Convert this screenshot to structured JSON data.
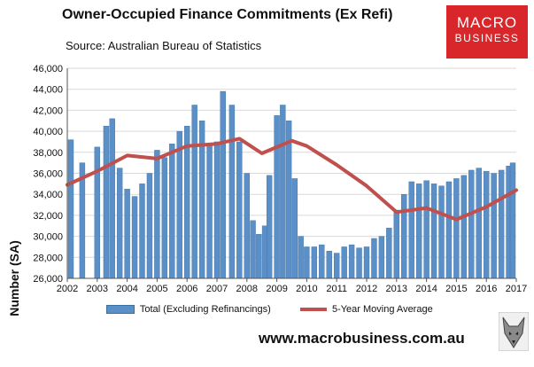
{
  "header": {
    "title": "Owner-Occupied Finance Commitments (Ex Refi)",
    "source": "Source: Australian  Bureau of Statistics"
  },
  "logo": {
    "line1": "MACRO",
    "line2": "BUSINESS"
  },
  "footer": {
    "url": "www.macrobusiness.com.au"
  },
  "colors": {
    "bar": "#5b8fc7",
    "bar_edge": "#3c6fa3",
    "line": "#c0504d",
    "logo": "#d8262b"
  },
  "chart_data": {
    "type": "bar",
    "title": "Owner-Occupied Finance Commitments (Ex Refi)",
    "ylabel": "Number (SA)",
    "ylim": [
      26000,
      46000
    ],
    "yticks": [
      26000,
      28000,
      30000,
      32000,
      34000,
      36000,
      38000,
      40000,
      42000,
      44000,
      46000
    ],
    "ytick_labels": [
      "26,000",
      "28,000",
      "30,000",
      "32,000",
      "34,000",
      "36,000",
      "38,000",
      "40,000",
      "42,000",
      "44,000",
      "46,000"
    ],
    "xlim": [
      2002.0,
      2017.0
    ],
    "xticks": [
      2002,
      2003,
      2004,
      2005,
      2006,
      2007,
      2008,
      2009,
      2010,
      2011,
      2012,
      2013,
      2014,
      2015,
      2016,
      2017
    ],
    "xtick_labels": [
      "2002",
      "2003",
      "2004",
      "2005",
      "2006",
      "2007",
      "2008",
      "2009",
      "2010",
      "2011",
      "2012",
      "2013",
      "2014",
      "2015",
      "2016",
      "2017"
    ],
    "grid": true,
    "legend_position": "bottom",
    "series": [
      {
        "name": "Total (Excluding Refinancings)",
        "kind": "bar",
        "x": [
          2002.0,
          2002.5,
          2003.0,
          2003.3,
          2003.5,
          2003.75,
          2004.0,
          2004.25,
          2004.5,
          2004.75,
          2005.0,
          2005.25,
          2005.5,
          2005.75,
          2006.0,
          2006.25,
          2006.5,
          2006.75,
          2007.0,
          2007.2,
          2007.5,
          2007.75,
          2008.0,
          2008.2,
          2008.4,
          2008.6,
          2008.75,
          2009.0,
          2009.2,
          2009.4,
          2009.6,
          2009.8,
          2010.0,
          2010.25,
          2010.5,
          2010.75,
          2011.0,
          2011.25,
          2011.5,
          2011.75,
          2012.0,
          2012.25,
          2012.5,
          2012.75,
          2013.0,
          2013.25,
          2013.5,
          2013.75,
          2014.0,
          2014.25,
          2014.5,
          2014.75,
          2015.0,
          2015.25,
          2015.5,
          2015.75,
          2016.0,
          2016.25,
          2016.5,
          2016.75,
          2017.0
        ],
        "values": [
          39200,
          37000,
          38500,
          40500,
          41200,
          36500,
          34500,
          33800,
          35000,
          36000,
          38200,
          37500,
          38800,
          40000,
          40500,
          42500,
          41000,
          38800,
          39000,
          43800,
          42500,
          39000,
          36000,
          31500,
          30200,
          31000,
          35800,
          41500,
          42500,
          41000,
          35500,
          30000,
          29000,
          29000,
          29200,
          28600,
          28400,
          29000,
          29200,
          28900,
          29000,
          29800,
          30000,
          30800,
          32500,
          34000,
          35200,
          35000,
          35300,
          35000,
          34800,
          35200,
          35500,
          35800,
          36300,
          36500,
          36200,
          36000,
          36300,
          36700,
          37000
        ]
      },
      {
        "name": "5-Year Moving Average",
        "kind": "line",
        "x": [
          2002.0,
          2003.0,
          2004.0,
          2005.0,
          2006.0,
          2007.0,
          2007.75,
          2008.5,
          2009.0,
          2009.5,
          2010.0,
          2011.0,
          2012.0,
          2013.0,
          2013.5,
          2014.0,
          2015.0,
          2016.0,
          2017.0
        ],
        "values": [
          34900,
          36200,
          37700,
          37400,
          38600,
          38800,
          39300,
          37900,
          38500,
          39100,
          38600,
          36800,
          34800,
          32300,
          32500,
          32700,
          31600,
          32800,
          34400
        ]
      }
    ]
  }
}
